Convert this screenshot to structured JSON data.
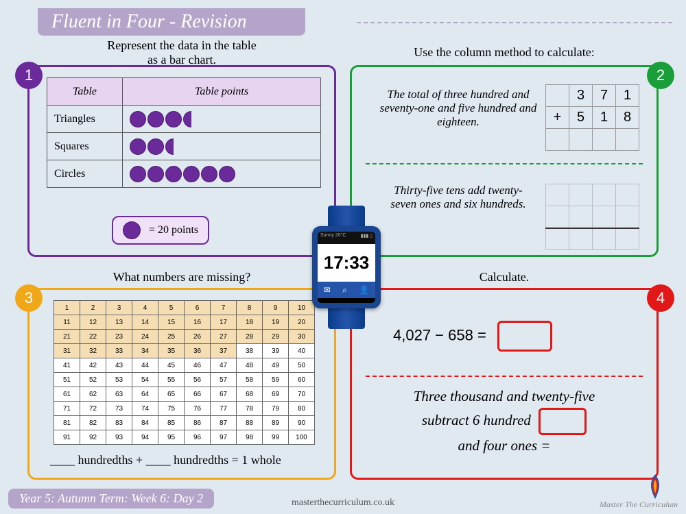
{
  "title": "Fluent in Four - Revision",
  "badges": {
    "b1": "1",
    "b2": "2",
    "b3": "3",
    "b4": "4"
  },
  "panel1": {
    "prompt": "Represent the data in the table\nas a bar chart.",
    "header_left": "Table",
    "header_right": "Table points",
    "rows": [
      {
        "label": "Triangles",
        "full": 3,
        "half": 1
      },
      {
        "label": "Squares",
        "full": 2,
        "half": 1
      },
      {
        "label": "Circles",
        "full": 6,
        "half": 0
      }
    ],
    "legend_text": "= 20 points"
  },
  "panel2": {
    "prompt": "Use the column method to calculate:",
    "q1": "The total of three hundred and seventy-one and five hundred and eighteen.",
    "colsum": [
      [
        "",
        "3",
        "7",
        "1"
      ],
      [
        "+",
        "5",
        "1",
        "8"
      ],
      [
        "",
        "",
        "",
        ""
      ]
    ],
    "q2": "Thirty-five tens add twenty-seven ones and six hundreds."
  },
  "panel3": {
    "prompt": "What numbers are missing?",
    "shaded_until": 37,
    "equation": "____  hundredths +  ____  hundredths = 1 whole"
  },
  "panel4": {
    "prompt": "Calculate.",
    "q1_lhs": "4,027 − 658 =",
    "q2_l1": "Three thousand and twenty-five",
    "q2_l2": "subtract 6 hundred",
    "q2_l3": "and four ones ="
  },
  "watch": {
    "weather": "Sunny 20°C",
    "time": "17:33"
  },
  "footer": {
    "left": "Year 5: Autumn Term: Week 6: Day 2",
    "center": "masterthecurriculum.co.uk",
    "right": "Master The Curriculum"
  },
  "colors": {
    "purple": "#6b2a9a",
    "green": "#1a9e3a",
    "orange": "#f0a818",
    "red": "#e01818",
    "lavender": "#b5a4c9",
    "bg": "#e0e8f0"
  }
}
